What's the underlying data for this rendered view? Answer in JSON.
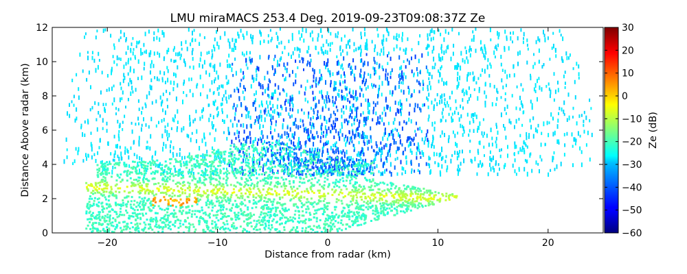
{
  "chart_data": {
    "type": "heatmap",
    "title": "LMU miraMACS 253.4 Deg. 2019-09-23T09:08:37Z  Ze",
    "xlabel": "Distance from radar (km)",
    "ylabel": "Distance Above radar  (km)",
    "xlim": [
      -25,
      25
    ],
    "ylim": [
      0,
      12
    ],
    "xticks": [
      -20,
      -10,
      0,
      10,
      20
    ],
    "yticks": [
      0,
      2,
      4,
      6,
      8,
      10,
      12
    ],
    "grid": false,
    "colorbar": {
      "label": "Ze (dB)",
      "range": [
        -60,
        30
      ],
      "ticks": [
        -60,
        -50,
        -40,
        -30,
        -20,
        -10,
        0,
        10,
        20,
        30
      ],
      "colormap": "jet"
    },
    "scan": {
      "elevation_limits_deg": [
        10,
        170
      ],
      "max_range_km": 25
    },
    "features": [
      {
        "label": "noise speckle aloft",
        "ze_db": -28,
        "height_km": [
          4,
          12
        ]
      },
      {
        "label": "weak echo near zenith",
        "ze_db": -40,
        "height_km": [
          3.5,
          10
        ]
      },
      {
        "label": "cloud layer",
        "ze_db": -22,
        "height_km": [
          0,
          5
        ]
      },
      {
        "label": "melting layer peak",
        "ze_db": 5,
        "x_km": [
          -16,
          -12
        ],
        "height_km": [
          1.8,
          2.2
        ]
      },
      {
        "label": "bright band",
        "ze_db": -5,
        "x_km": [
          -16,
          8
        ],
        "height_km": [
          2,
          2.8
        ]
      }
    ]
  }
}
